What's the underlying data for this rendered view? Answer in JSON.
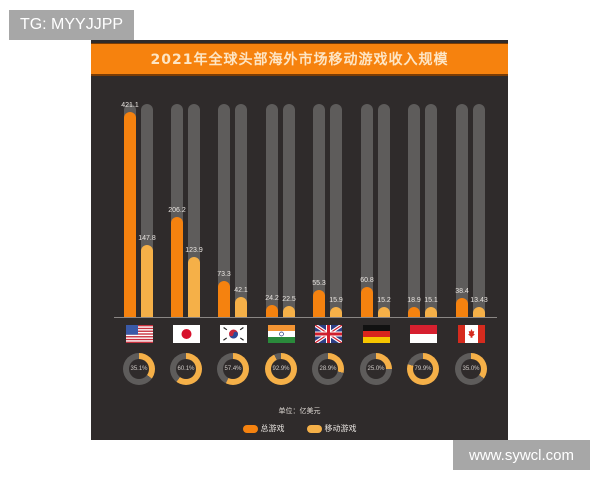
{
  "watermarks": {
    "top_left": "TG: MYYJJPP",
    "bottom_right": "www.sywcl.com"
  },
  "colors": {
    "background": "#2f2b2b",
    "total": "#f5820f",
    "mobile": "#f5b048",
    "track": "#5e5c5b",
    "title_band": "#f6820e"
  },
  "chart": {
    "title": "2021年全球头部海外市场移动游戏收入规模",
    "unit": "单位：亿美元",
    "legend": [
      {
        "label": "总游戏",
        "key": "total"
      },
      {
        "label": "移动游戏",
        "key": "mobile"
      }
    ]
  },
  "countries": [
    {
      "flag": "usa",
      "total": "421.1",
      "mobile": "147.8",
      "share": "35.1%"
    },
    {
      "flag": "japan",
      "total": "206.2",
      "mobile": "123.9",
      "share": "60.1%"
    },
    {
      "flag": "korea",
      "total": "73.3",
      "mobile": "42.1",
      "share": "57.4%"
    },
    {
      "flag": "india",
      "total": "24.2",
      "mobile": "22.5",
      "share": "92.9%"
    },
    {
      "flag": "uk",
      "total": "55.3",
      "mobile": "15.9",
      "share": "28.9%"
    },
    {
      "flag": "germany",
      "total": "60.8",
      "mobile": "15.2",
      "share": "25.0%"
    },
    {
      "flag": "indonesia",
      "total": "18.9",
      "mobile": "15.1",
      "share": "79.9%"
    },
    {
      "flag": "canada",
      "total": "38.4",
      "mobile": "13.43",
      "share": "35.0%"
    }
  ],
  "chart_data": {
    "type": "bar",
    "title": "2021年全球头部海外市场移动游戏收入规模",
    "xlabel": "",
    "ylabel": "单位：亿美元",
    "categories": [
      "美国",
      "日本",
      "韩国",
      "印度",
      "英国",
      "德国",
      "印度尼西亚",
      "加拿大"
    ],
    "series": [
      {
        "name": "总游戏",
        "values": [
          421.1,
          206.2,
          73.3,
          24.2,
          55.3,
          60.8,
          18.9,
          38.4
        ]
      },
      {
        "name": "移动游戏",
        "values": [
          147.8,
          123.9,
          42.1,
          22.5,
          15.9,
          15.2,
          15.1,
          13.43
        ]
      }
    ],
    "mobile_share_percent": [
      35.1,
      60.1,
      57.4,
      92.9,
      28.9,
      25.0,
      79.9,
      35.0
    ],
    "legend_position": "bottom",
    "grid": false
  }
}
